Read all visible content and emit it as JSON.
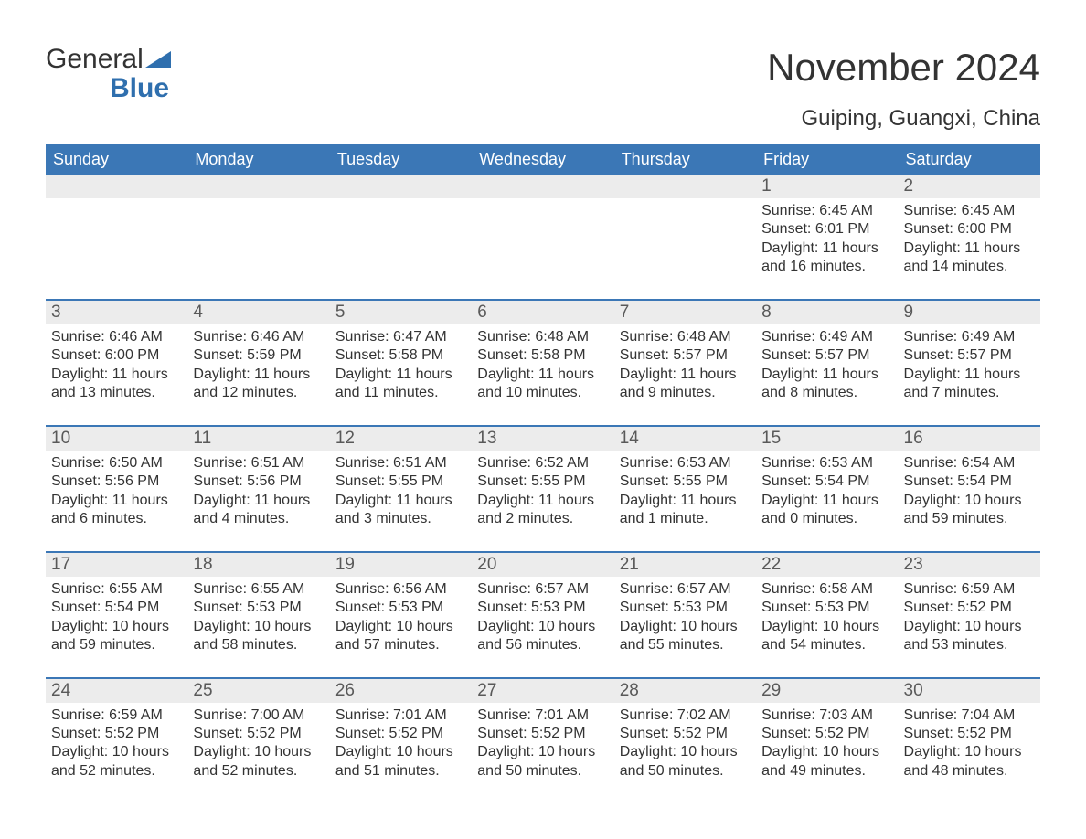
{
  "logo": {
    "general": "General",
    "blue": "Blue"
  },
  "title": "November 2024",
  "subtitle": "Guiping, Guangxi, China",
  "colors": {
    "header_bg": "#3b77b6",
    "header_text": "#ffffff",
    "daynum_bg": "#ececec",
    "daynum_text": "#595959",
    "body_text": "#333333",
    "rule": "#3b77b6",
    "logo_blue": "#2f6fae"
  },
  "day_headers": [
    "Sunday",
    "Monday",
    "Tuesday",
    "Wednesday",
    "Thursday",
    "Friday",
    "Saturday"
  ],
  "weeks": [
    [
      {
        "n": "",
        "sunrise": "",
        "sunset": "",
        "daylight": ""
      },
      {
        "n": "",
        "sunrise": "",
        "sunset": "",
        "daylight": ""
      },
      {
        "n": "",
        "sunrise": "",
        "sunset": "",
        "daylight": ""
      },
      {
        "n": "",
        "sunrise": "",
        "sunset": "",
        "daylight": ""
      },
      {
        "n": "",
        "sunrise": "",
        "sunset": "",
        "daylight": ""
      },
      {
        "n": "1",
        "sunrise": "Sunrise: 6:45 AM",
        "sunset": "Sunset: 6:01 PM",
        "daylight": "Daylight: 11 hours and 16 minutes."
      },
      {
        "n": "2",
        "sunrise": "Sunrise: 6:45 AM",
        "sunset": "Sunset: 6:00 PM",
        "daylight": "Daylight: 11 hours and 14 minutes."
      }
    ],
    [
      {
        "n": "3",
        "sunrise": "Sunrise: 6:46 AM",
        "sunset": "Sunset: 6:00 PM",
        "daylight": "Daylight: 11 hours and 13 minutes."
      },
      {
        "n": "4",
        "sunrise": "Sunrise: 6:46 AM",
        "sunset": "Sunset: 5:59 PM",
        "daylight": "Daylight: 11 hours and 12 minutes."
      },
      {
        "n": "5",
        "sunrise": "Sunrise: 6:47 AM",
        "sunset": "Sunset: 5:58 PM",
        "daylight": "Daylight: 11 hours and 11 minutes."
      },
      {
        "n": "6",
        "sunrise": "Sunrise: 6:48 AM",
        "sunset": "Sunset: 5:58 PM",
        "daylight": "Daylight: 11 hours and 10 minutes."
      },
      {
        "n": "7",
        "sunrise": "Sunrise: 6:48 AM",
        "sunset": "Sunset: 5:57 PM",
        "daylight": "Daylight: 11 hours and 9 minutes."
      },
      {
        "n": "8",
        "sunrise": "Sunrise: 6:49 AM",
        "sunset": "Sunset: 5:57 PM",
        "daylight": "Daylight: 11 hours and 8 minutes."
      },
      {
        "n": "9",
        "sunrise": "Sunrise: 6:49 AM",
        "sunset": "Sunset: 5:57 PM",
        "daylight": "Daylight: 11 hours and 7 minutes."
      }
    ],
    [
      {
        "n": "10",
        "sunrise": "Sunrise: 6:50 AM",
        "sunset": "Sunset: 5:56 PM",
        "daylight": "Daylight: 11 hours and 6 minutes."
      },
      {
        "n": "11",
        "sunrise": "Sunrise: 6:51 AM",
        "sunset": "Sunset: 5:56 PM",
        "daylight": "Daylight: 11 hours and 4 minutes."
      },
      {
        "n": "12",
        "sunrise": "Sunrise: 6:51 AM",
        "sunset": "Sunset: 5:55 PM",
        "daylight": "Daylight: 11 hours and 3 minutes."
      },
      {
        "n": "13",
        "sunrise": "Sunrise: 6:52 AM",
        "sunset": "Sunset: 5:55 PM",
        "daylight": "Daylight: 11 hours and 2 minutes."
      },
      {
        "n": "14",
        "sunrise": "Sunrise: 6:53 AM",
        "sunset": "Sunset: 5:55 PM",
        "daylight": "Daylight: 11 hours and 1 minute."
      },
      {
        "n": "15",
        "sunrise": "Sunrise: 6:53 AM",
        "sunset": "Sunset: 5:54 PM",
        "daylight": "Daylight: 11 hours and 0 minutes."
      },
      {
        "n": "16",
        "sunrise": "Sunrise: 6:54 AM",
        "sunset": "Sunset: 5:54 PM",
        "daylight": "Daylight: 10 hours and 59 minutes."
      }
    ],
    [
      {
        "n": "17",
        "sunrise": "Sunrise: 6:55 AM",
        "sunset": "Sunset: 5:54 PM",
        "daylight": "Daylight: 10 hours and 59 minutes."
      },
      {
        "n": "18",
        "sunrise": "Sunrise: 6:55 AM",
        "sunset": "Sunset: 5:53 PM",
        "daylight": "Daylight: 10 hours and 58 minutes."
      },
      {
        "n": "19",
        "sunrise": "Sunrise: 6:56 AM",
        "sunset": "Sunset: 5:53 PM",
        "daylight": "Daylight: 10 hours and 57 minutes."
      },
      {
        "n": "20",
        "sunrise": "Sunrise: 6:57 AM",
        "sunset": "Sunset: 5:53 PM",
        "daylight": "Daylight: 10 hours and 56 minutes."
      },
      {
        "n": "21",
        "sunrise": "Sunrise: 6:57 AM",
        "sunset": "Sunset: 5:53 PM",
        "daylight": "Daylight: 10 hours and 55 minutes."
      },
      {
        "n": "22",
        "sunrise": "Sunrise: 6:58 AM",
        "sunset": "Sunset: 5:53 PM",
        "daylight": "Daylight: 10 hours and 54 minutes."
      },
      {
        "n": "23",
        "sunrise": "Sunrise: 6:59 AM",
        "sunset": "Sunset: 5:52 PM",
        "daylight": "Daylight: 10 hours and 53 minutes."
      }
    ],
    [
      {
        "n": "24",
        "sunrise": "Sunrise: 6:59 AM",
        "sunset": "Sunset: 5:52 PM",
        "daylight": "Daylight: 10 hours and 52 minutes."
      },
      {
        "n": "25",
        "sunrise": "Sunrise: 7:00 AM",
        "sunset": "Sunset: 5:52 PM",
        "daylight": "Daylight: 10 hours and 52 minutes."
      },
      {
        "n": "26",
        "sunrise": "Sunrise: 7:01 AM",
        "sunset": "Sunset: 5:52 PM",
        "daylight": "Daylight: 10 hours and 51 minutes."
      },
      {
        "n": "27",
        "sunrise": "Sunrise: 7:01 AM",
        "sunset": "Sunset: 5:52 PM",
        "daylight": "Daylight: 10 hours and 50 minutes."
      },
      {
        "n": "28",
        "sunrise": "Sunrise: 7:02 AM",
        "sunset": "Sunset: 5:52 PM",
        "daylight": "Daylight: 10 hours and 50 minutes."
      },
      {
        "n": "29",
        "sunrise": "Sunrise: 7:03 AM",
        "sunset": "Sunset: 5:52 PM",
        "daylight": "Daylight: 10 hours and 49 minutes."
      },
      {
        "n": "30",
        "sunrise": "Sunrise: 7:04 AM",
        "sunset": "Sunset: 5:52 PM",
        "daylight": "Daylight: 10 hours and 48 minutes."
      }
    ]
  ]
}
